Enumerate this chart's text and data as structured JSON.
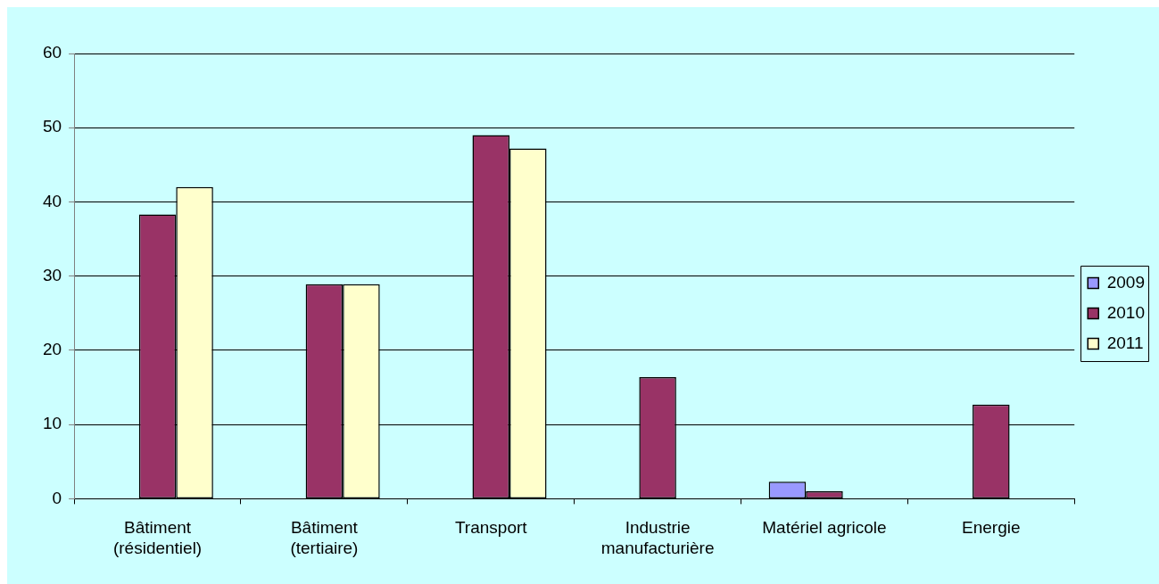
{
  "chart_data": {
    "type": "bar",
    "categories": [
      "Bâtiment (résidentiel)",
      "Bâtiment (tertiaire)",
      "Transport",
      "Industrie manufacturière",
      "Matériel agricole",
      "Energie"
    ],
    "series": [
      {
        "name": "2009",
        "color": "#9999ff",
        "values": [
          null,
          null,
          null,
          null,
          2.3,
          null
        ]
      },
      {
        "name": "2010",
        "color": "#993366",
        "values": [
          38.3,
          28.9,
          49.0,
          16.4,
          1.0,
          12.7
        ]
      },
      {
        "name": "2011",
        "color": "#ffffcc",
        "values": [
          42.0,
          28.9,
          47.2,
          null,
          null,
          null
        ]
      }
    ],
    "ylim": [
      0,
      60
    ],
    "yticks": [
      0,
      10,
      20,
      30,
      40,
      50,
      60
    ],
    "grid": "y",
    "legend": "right"
  }
}
